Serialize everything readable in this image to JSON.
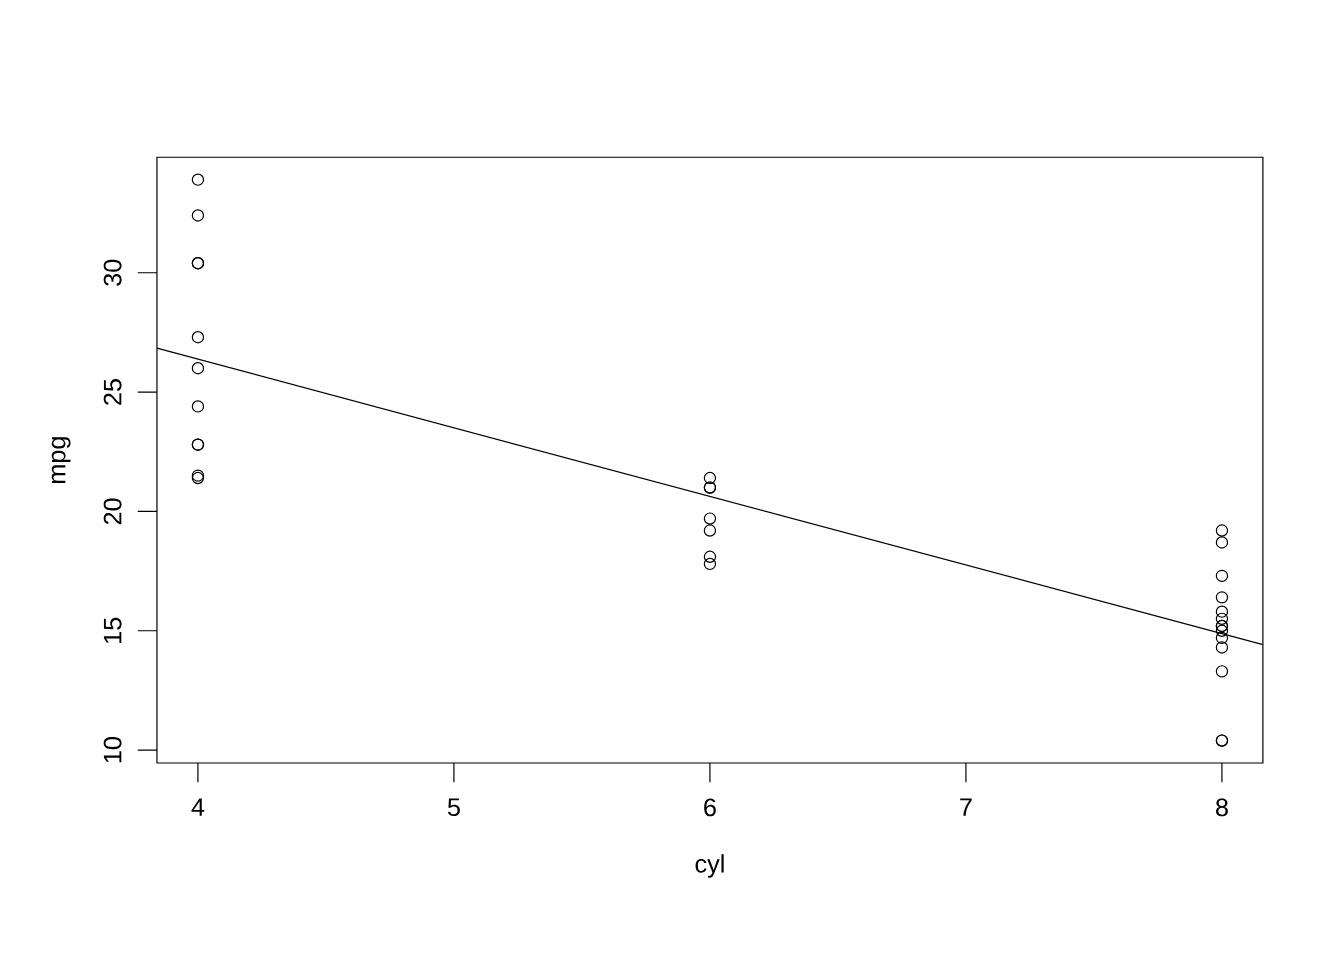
{
  "chart_data": {
    "type": "scatter",
    "xlabel": "cyl",
    "ylabel": "mpg",
    "xlim": [
      3.84,
      8.16
    ],
    "ylim": [
      9.46,
      34.84
    ],
    "xticks": [
      4,
      5,
      6,
      7,
      8
    ],
    "yticks": [
      10,
      15,
      20,
      25,
      30
    ],
    "series": [
      {
        "marker": "circle",
        "color": "#000000",
        "x": [
          4,
          4,
          4,
          4,
          4,
          4,
          4,
          4,
          4,
          4,
          4,
          6,
          6,
          6,
          6,
          6,
          6,
          6,
          8,
          8,
          8,
          8,
          8,
          8,
          8,
          8,
          8,
          8,
          8,
          8,
          8,
          8
        ],
        "values": [
          22.8,
          24.4,
          22.8,
          32.4,
          30.4,
          33.9,
          21.5,
          27.3,
          26.0,
          30.4,
          21.4,
          21.0,
          21.0,
          21.4,
          18.1,
          19.2,
          17.8,
          19.7,
          18.7,
          14.3,
          16.4,
          17.3,
          15.2,
          10.4,
          10.4,
          14.7,
          15.5,
          15.2,
          13.3,
          19.2,
          15.8,
          15.0
        ]
      },
      {
        "type": "line",
        "marker": "none",
        "line_style": "solid",
        "color": "#000000",
        "x": [
          3.84,
          8.16
        ],
        "values": [
          26.84,
          14.42
        ]
      }
    ]
  }
}
